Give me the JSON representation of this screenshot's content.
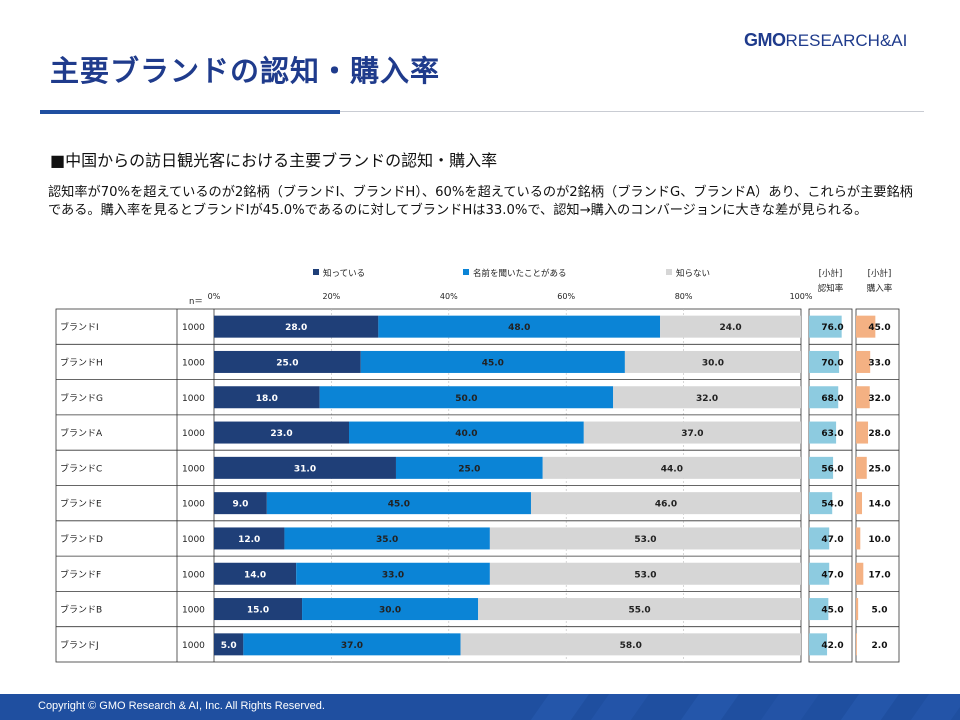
{
  "header": {
    "title": "主要ブランドの認知・購入率",
    "logo_mark": "GMO",
    "logo_text": "RESEARCH&AI"
  },
  "section": {
    "subtitle": "■中国からの訪日観光客における主要ブランドの認知・購入率",
    "description": "認知率が70%を超えているのが2銘柄（ブランドI、ブランドH）、60%を超えているのが2銘柄（ブランドG、ブランドA）あり、これらが主要銘柄である。購入率を見るとブランドIが45.0%であるのに対してブランドHは33.0%で、認知→購入のコンバージョンに大きな差が見られる。"
  },
  "colors": {
    "know": "#1f3f78",
    "heard": "#0b84d6",
    "unknown": "#d6d6d6",
    "awareness_bar": "#8dcbe0",
    "purchase_bar": "#f4b183",
    "title": "#1f3b8c",
    "footer": "#1f4fa0"
  },
  "chart_data": {
    "type": "stacked-bar-100",
    "legend": [
      "知っている",
      "名前を聞いたことがある",
      "知らない"
    ],
    "n_label": "n＝",
    "ticks": [
      "0%",
      "20%",
      "40%",
      "60%",
      "80%",
      "100%"
    ],
    "xlim": [
      0,
      100
    ],
    "rows": [
      {
        "label": "ブランドI",
        "n": "1000",
        "values": [
          28.0,
          48.0,
          24.0
        ],
        "awareness": 76.0,
        "purchase": 45.0
      },
      {
        "label": "ブランドH",
        "n": "1000",
        "values": [
          25.0,
          45.0,
          30.0
        ],
        "awareness": 70.0,
        "purchase": 33.0
      },
      {
        "label": "ブランドG",
        "n": "1000",
        "values": [
          18.0,
          50.0,
          32.0
        ],
        "awareness": 68.0,
        "purchase": 32.0
      },
      {
        "label": "ブランドA",
        "n": "1000",
        "values": [
          23.0,
          40.0,
          37.0
        ],
        "awareness": 63.0,
        "purchase": 28.0
      },
      {
        "label": "ブランドC",
        "n": "1000",
        "values": [
          31.0,
          25.0,
          44.0
        ],
        "awareness": 56.0,
        "purchase": 25.0
      },
      {
        "label": "ブランドE",
        "n": "1000",
        "values": [
          9.0,
          45.0,
          46.0
        ],
        "awareness": 54.0,
        "purchase": 14.0
      },
      {
        "label": "ブランドD",
        "n": "1000",
        "values": [
          12.0,
          35.0,
          53.0
        ],
        "awareness": 47.0,
        "purchase": 10.0
      },
      {
        "label": "ブランドF",
        "n": "1000",
        "values": [
          14.0,
          33.0,
          53.0
        ],
        "awareness": 47.0,
        "purchase": 17.0
      },
      {
        "label": "ブランドB",
        "n": "1000",
        "values": [
          15.0,
          30.0,
          55.0
        ],
        "awareness": 45.0,
        "purchase": 5.0
      },
      {
        "label": "ブランドJ",
        "n": "1000",
        "values": [
          5.0,
          37.0,
          58.0
        ],
        "awareness": 42.0,
        "purchase": 2.0
      }
    ],
    "summary_headers": {
      "awareness_top": "[小計]",
      "awareness_bottom": "認知率",
      "purchase_top": "[小計]",
      "purchase_bottom": "購入率"
    }
  },
  "footer": {
    "copyright": "Copyright © GMO Research & AI, Inc. All Rights Reserved."
  }
}
